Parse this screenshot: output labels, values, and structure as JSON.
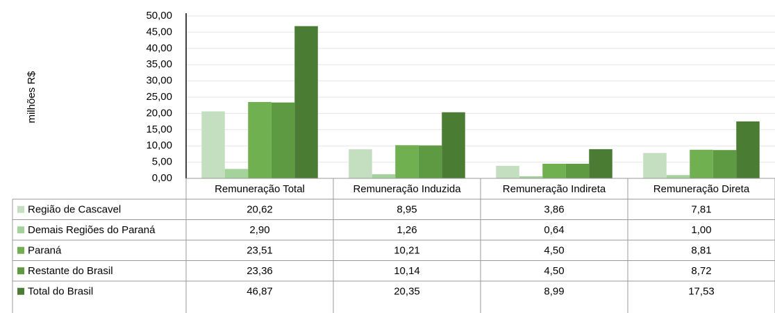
{
  "chart_data": {
    "type": "bar",
    "y_axis_label": "milhões R$",
    "categories": [
      "Remuneração Total",
      "Remuneração Induzida",
      "Remuneração Indireta",
      "Remuneração Direta"
    ],
    "series": [
      {
        "name": "Região de Cascavel",
        "color": "#c3dfbf",
        "values": [
          20.62,
          8.95,
          3.86,
          7.81
        ],
        "value_labels": [
          "20,62",
          "8,95",
          "3,86",
          "7,81"
        ]
      },
      {
        "name": "Demais Regiões do Paraná",
        "color": "#a3d29a",
        "values": [
          2.9,
          1.26,
          0.64,
          1.0
        ],
        "value_labels": [
          "2,90",
          "1,26",
          "0,64",
          "1,00"
        ]
      },
      {
        "name": "Paraná",
        "color": "#70b050",
        "values": [
          23.51,
          10.21,
          4.5,
          8.81
        ],
        "value_labels": [
          "23,51",
          "10,21",
          "4,50",
          "8,81"
        ]
      },
      {
        "name": "Restante do Brasil",
        "color": "#5e9a42",
        "values": [
          23.36,
          10.14,
          4.5,
          8.72
        ],
        "value_labels": [
          "23,36",
          "10,14",
          "4,50",
          "8,72"
        ]
      },
      {
        "name": "Total do Brasil",
        "color": "#4a7d33",
        "values": [
          46.87,
          20.35,
          8.99,
          17.53
        ],
        "value_labels": [
          "46,87",
          "20,35",
          "8,99",
          "17,53"
        ]
      }
    ],
    "ylim": [
      0,
      50
    ],
    "yticks": [
      {
        "value": 0,
        "label": "0,00"
      },
      {
        "value": 5,
        "label": "5,00"
      },
      {
        "value": 10,
        "label": "10,00"
      },
      {
        "value": 15,
        "label": "15,00"
      },
      {
        "value": 20,
        "label": "20,00"
      },
      {
        "value": 25,
        "label": "25,00"
      },
      {
        "value": 30,
        "label": "30,00"
      },
      {
        "value": 35,
        "label": "35,00"
      },
      {
        "value": 40,
        "label": "40,00"
      },
      {
        "value": 45,
        "label": "45,00"
      },
      {
        "value": 50,
        "label": "50,00"
      }
    ],
    "grid": true
  }
}
